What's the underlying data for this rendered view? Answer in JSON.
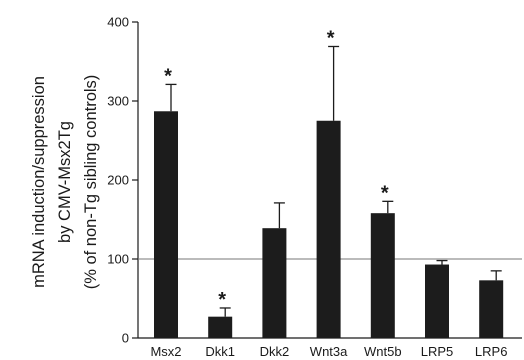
{
  "chart_data": {
    "type": "bar",
    "ylabel_lines": [
      "mRNA induction/suppression",
      "by CMV-Msx2Tg",
      "(% of non-Tg sibling controls)"
    ],
    "xlabel": "",
    "ylim": [
      0,
      400
    ],
    "yticks": [
      0,
      100,
      200,
      300,
      400
    ],
    "reference_line": 100,
    "categories": [
      "Msx2",
      "Dkk1",
      "Dkk2",
      "Wnt3a",
      "Wnt5b",
      "LRP5",
      "LRP6"
    ],
    "values": [
      287,
      27,
      139,
      275,
      158,
      93,
      73
    ],
    "error_upper": [
      34,
      11,
      32,
      94,
      15,
      5,
      12
    ],
    "significant": [
      true,
      true,
      false,
      true,
      true,
      false,
      false
    ],
    "significance_marker": "*",
    "bar_color": "#1c1c1c",
    "reference_line_color": "#777777",
    "grid": false
  }
}
